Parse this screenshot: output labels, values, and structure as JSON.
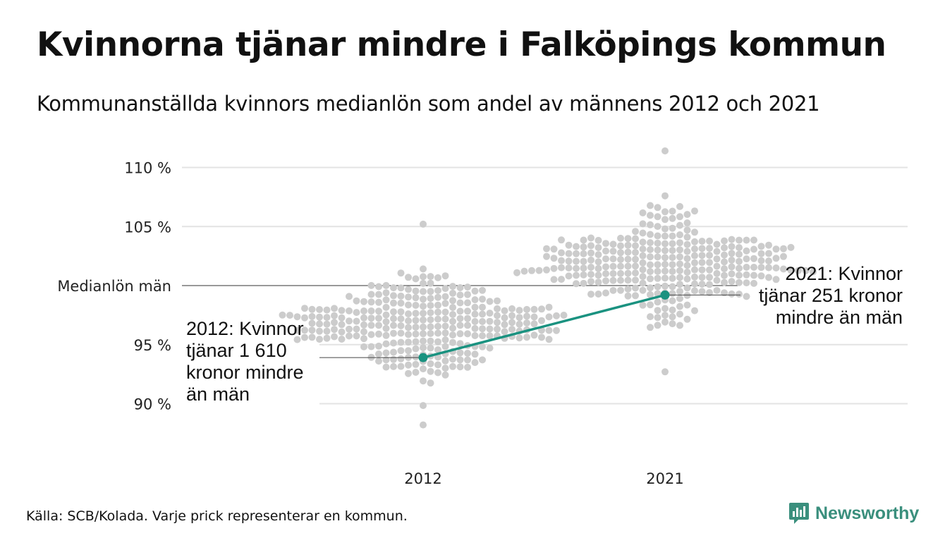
{
  "title": "Kvinnorna tjänar mindre i Falköpings kommun",
  "subtitle": "Kommunanställda kvinnors medianlön som andel av männens 2012 och 2021",
  "source": "Källa: SCB/Kolada. Varje prick representerar en kommun.",
  "brand": "Newsworthy",
  "colors": {
    "dots": "#cccccc",
    "highlight": "#1a9280",
    "grid": "#e3e3e3",
    "reference": "#333333",
    "brand": "#3a8f7d"
  },
  "chart_data": {
    "type": "scatter",
    "categories": [
      "2012",
      "2021"
    ],
    "ylim": [
      87,
      111
    ],
    "yticks": [
      {
        "value": 90,
        "label": "90 %"
      },
      {
        "value": 95,
        "label": "95 %"
      },
      {
        "value": 105,
        "label": "105 %"
      },
      {
        "value": 110,
        "label": "110 %"
      }
    ],
    "reference_line": {
      "value": 100,
      "label": "Medianlön män"
    },
    "distribution": {
      "2012": {
        "min": 88.2,
        "max": 105.2,
        "center": 96.5
      },
      "2021": {
        "min": 92.7,
        "max": 111.4,
        "center": 101.8
      }
    },
    "highlight": {
      "name": "Falköpings kommun",
      "values": [
        {
          "category": "2012",
          "value": 93.9
        },
        {
          "category": "2021",
          "value": 99.2
        }
      ]
    },
    "annotations": [
      {
        "category": "2012",
        "lines": [
          "2012: Kvinnor",
          "tjänar 1 610",
          "kronor mindre",
          "än män"
        ]
      },
      {
        "category": "2021",
        "lines": [
          "2021: Kvinnor",
          "tjänar 251 kronor",
          "mindre än män"
        ]
      }
    ]
  }
}
